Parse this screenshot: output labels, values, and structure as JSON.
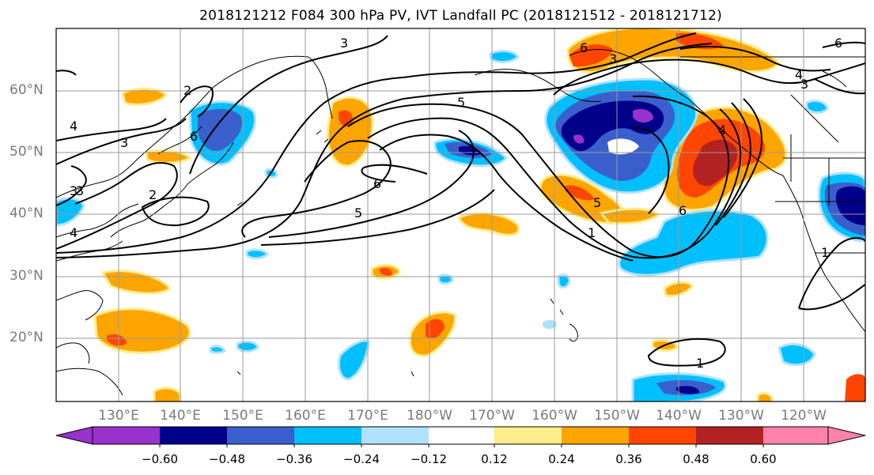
{
  "title": "2018121212 F084 300 hPa PV, IVT Landfall PC (2018121512 - 2018121712)",
  "map": {
    "lat_labels": [
      "60°N",
      "50°N",
      "40°N",
      "30°N",
      "20°N"
    ],
    "lon_labels": [
      "130°E",
      "140°E",
      "150°E",
      "160°E",
      "170°E",
      "180°W",
      "170°W",
      "160°W",
      "150°W",
      "140°W",
      "130°W",
      "120°W"
    ],
    "contour_labels": [
      "3",
      "4",
      "3",
      "2",
      "3",
      "4",
      "2",
      "3",
      "6",
      "3",
      "5",
      "6",
      "5",
      "6",
      "5",
      "4",
      "1",
      "6",
      "4",
      "3",
      "6",
      "1",
      "1"
    ],
    "grid": true
  },
  "colorbar": {
    "tick_labels": [
      "−0.60",
      "−0.48",
      "−0.36",
      "−0.24",
      "−0.12",
      "0.12",
      "0.24",
      "0.36",
      "0.48",
      "0.60"
    ],
    "colors": [
      "#9932CC",
      "#00008B",
      "#3A5FCD",
      "#00BFFF",
      "#B0E2FF",
      "#FFFFFF",
      "#FFEC8B",
      "#FFA500",
      "#FF4500",
      "#B22222",
      "#FF82AB"
    ]
  }
}
